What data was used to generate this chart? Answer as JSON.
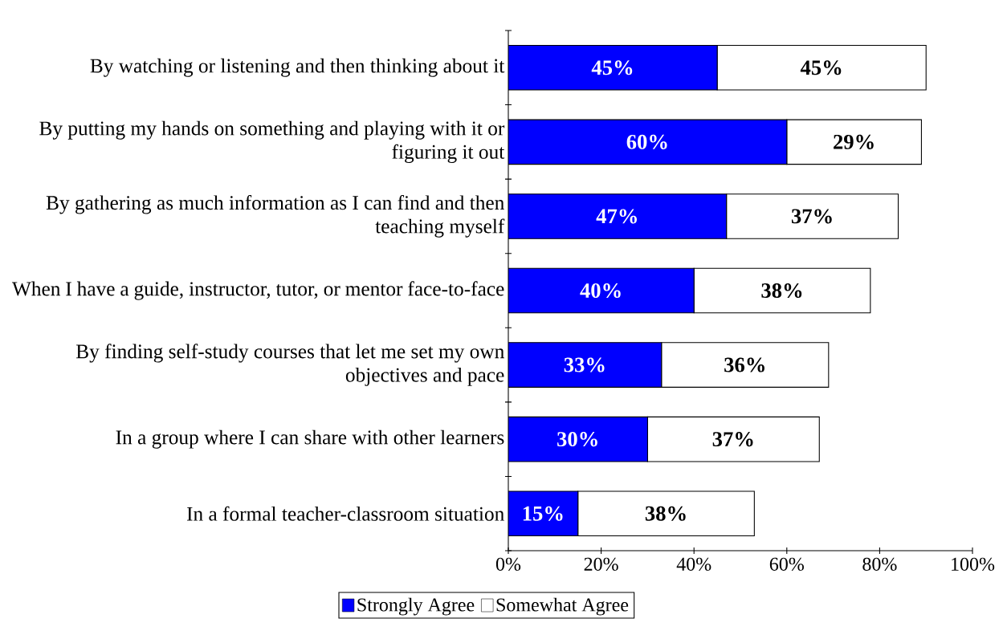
{
  "chart_data": {
    "type": "bar",
    "orientation": "horizontal",
    "stacked": true,
    "categories": [
      "By watching or listening and then thinking about it",
      "By putting my hands on something and playing with it or figuring it out",
      "By gathering as much information as I can find and then teaching myself",
      "When I have a guide, instructor, tutor, or mentor face-to-face",
      "By finding self-study courses that let me set my own objectives and pace",
      "In a group where I can share with other learners",
      "In a formal teacher-classroom situation"
    ],
    "series": [
      {
        "name": "Strongly Agree",
        "color": "#0000ff",
        "values": [
          45,
          60,
          47,
          40,
          33,
          30,
          15
        ],
        "value_labels": [
          "45%",
          "60%",
          "47%",
          "40%",
          "33%",
          "30%",
          "15%"
        ]
      },
      {
        "name": "Somewhat Agree",
        "color": "#ffffff",
        "values": [
          45,
          29,
          37,
          38,
          36,
          37,
          38
        ],
        "value_labels": [
          "45%",
          "29%",
          "37%",
          "38%",
          "36%",
          "37%",
          "38%"
        ]
      }
    ],
    "xlim": [
      0,
      100
    ],
    "xticks": [
      {
        "value": 0,
        "label": "0%"
      },
      {
        "value": 20,
        "label": "20%"
      },
      {
        "value": 40,
        "label": "40%"
      },
      {
        "value": 60,
        "label": "60%"
      },
      {
        "value": 80,
        "label": "80%"
      },
      {
        "value": 100,
        "label": "100%"
      }
    ],
    "legend": "bottom"
  }
}
